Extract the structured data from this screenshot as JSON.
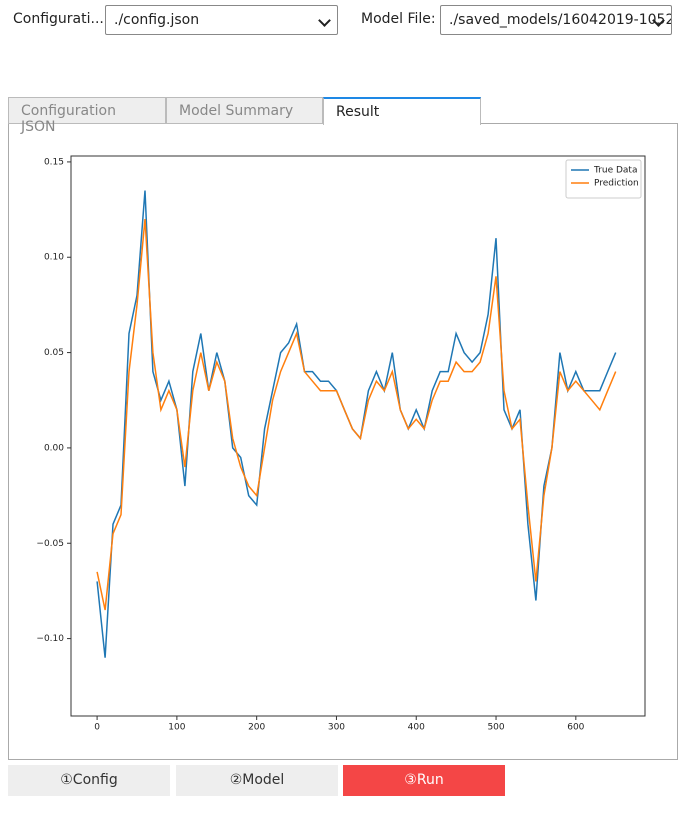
{
  "ui": {
    "config_label": "Configurati...",
    "config_select": "./config.json",
    "model_label": "Model File:",
    "model_select": "./saved_models/16042019-1052",
    "tabs": [
      "Configuration JSON",
      "Model Summary",
      "Result"
    ],
    "buttons": [
      "①Config",
      "②Model",
      "③Run"
    ]
  },
  "chart_data": {
    "type": "line",
    "x": [
      0,
      10,
      20,
      30,
      40,
      50,
      60,
      70,
      80,
      90,
      100,
      110,
      120,
      130,
      140,
      150,
      160,
      170,
      180,
      190,
      200,
      210,
      220,
      230,
      240,
      250,
      260,
      270,
      280,
      290,
      300,
      310,
      320,
      330,
      340,
      350,
      360,
      370,
      380,
      390,
      400,
      410,
      420,
      430,
      440,
      450,
      460,
      470,
      480,
      490,
      500,
      510,
      520,
      530,
      540,
      550,
      560,
      570,
      580,
      590,
      600,
      610,
      620,
      630,
      640,
      650
    ],
    "series": [
      {
        "name": "True Data",
        "color": "#1f77b4",
        "values": [
          -0.07,
          -0.11,
          -0.04,
          -0.03,
          0.06,
          0.08,
          0.135,
          0.04,
          0.025,
          0.035,
          0.02,
          -0.02,
          0.04,
          0.06,
          0.03,
          0.05,
          0.035,
          0.0,
          -0.005,
          -0.025,
          -0.03,
          0.01,
          0.03,
          0.05,
          0.055,
          0.065,
          0.04,
          0.04,
          0.035,
          0.035,
          0.03,
          0.02,
          0.01,
          0.005,
          0.03,
          0.04,
          0.03,
          0.05,
          0.02,
          0.01,
          0.02,
          0.01,
          0.03,
          0.04,
          0.04,
          0.06,
          0.05,
          0.045,
          0.05,
          0.07,
          0.11,
          0.02,
          0.01,
          0.02,
          -0.04,
          -0.08,
          -0.02,
          0.0,
          0.05,
          0.03,
          0.04,
          0.03,
          0.03,
          0.03,
          0.04,
          0.05
        ]
      },
      {
        "name": "Prediction",
        "color": "#ff7f0e",
        "values": [
          -0.065,
          -0.085,
          -0.045,
          -0.035,
          0.04,
          0.075,
          0.12,
          0.05,
          0.02,
          0.03,
          0.02,
          -0.01,
          0.03,
          0.05,
          0.03,
          0.045,
          0.035,
          0.005,
          -0.01,
          -0.02,
          -0.025,
          0.0,
          0.025,
          0.04,
          0.05,
          0.06,
          0.04,
          0.035,
          0.03,
          0.03,
          0.03,
          0.02,
          0.01,
          0.005,
          0.025,
          0.035,
          0.03,
          0.04,
          0.02,
          0.01,
          0.015,
          0.01,
          0.025,
          0.035,
          0.035,
          0.045,
          0.04,
          0.04,
          0.045,
          0.06,
          0.09,
          0.03,
          0.01,
          0.015,
          -0.03,
          -0.07,
          -0.025,
          0.0,
          0.04,
          0.03,
          0.035,
          0.03,
          0.025,
          0.02,
          0.03,
          0.04
        ]
      }
    ],
    "xlim": [
      -32.7,
      686.7
    ],
    "xticks": [
      0,
      100,
      200,
      300,
      400,
      500,
      600
    ],
    "ylim": [
      -0.1406,
      0.1531
    ],
    "yticks": [
      {
        "value": -0.1,
        "label": "−0.10"
      },
      {
        "value": -0.05,
        "label": "−0.05"
      },
      {
        "value": 0,
        "label": "0.00"
      },
      {
        "value": 0.05,
        "label": "0.05"
      },
      {
        "value": 0.1,
        "label": "0.10"
      },
      {
        "value": 0.15,
        "label": "0.15"
      }
    ],
    "legend": "upper right"
  }
}
